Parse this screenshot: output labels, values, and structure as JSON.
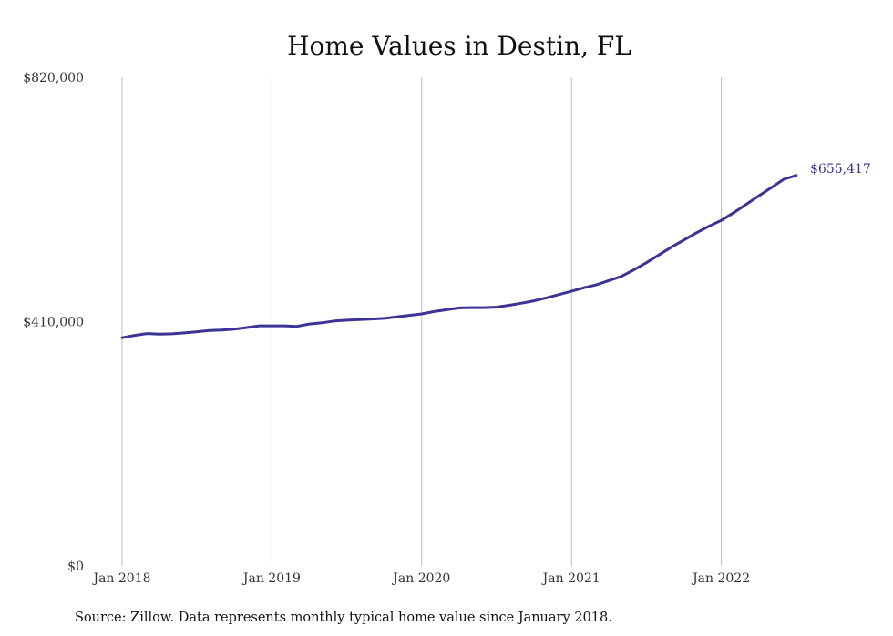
{
  "chart_data": {
    "type": "line",
    "title": "Home Values in Destin, FL",
    "xlabel": "",
    "ylabel": "",
    "ylim": [
      0,
      820000
    ],
    "y_ticks": [
      {
        "value": 0,
        "label": "$0"
      },
      {
        "value": 410000,
        "label": "$410,000"
      },
      {
        "value": 820000,
        "label": "$820,000"
      }
    ],
    "x_ticks": [
      {
        "month_index": 0,
        "label": "Jan 2018"
      },
      {
        "month_index": 12,
        "label": "Jan 2019"
      },
      {
        "month_index": 24,
        "label": "Jan 2020"
      },
      {
        "month_index": 36,
        "label": "Jan 2021"
      },
      {
        "month_index": 48,
        "label": "Jan 2022"
      }
    ],
    "grid": "vertical",
    "x": [
      "2018-01",
      "2018-02",
      "2018-03",
      "2018-04",
      "2018-05",
      "2018-06",
      "2018-07",
      "2018-08",
      "2018-09",
      "2018-10",
      "2018-11",
      "2018-12",
      "2019-01",
      "2019-02",
      "2019-03",
      "2019-04",
      "2019-05",
      "2019-06",
      "2019-07",
      "2019-08",
      "2019-09",
      "2019-10",
      "2019-11",
      "2019-12",
      "2020-01",
      "2020-02",
      "2020-03",
      "2020-04",
      "2020-05",
      "2020-06",
      "2020-07",
      "2020-08",
      "2020-09",
      "2020-10",
      "2020-11",
      "2020-12",
      "2021-01",
      "2021-02",
      "2021-03",
      "2021-04",
      "2021-05",
      "2021-06",
      "2021-07",
      "2021-08",
      "2021-09",
      "2021-10",
      "2021-11",
      "2021-12",
      "2022-01",
      "2022-02",
      "2022-03",
      "2022-04",
      "2022-05",
      "2022-06",
      "2022-07"
    ],
    "series": [
      {
        "color": "#3b3494",
        "values": [
          383000,
          387000,
          390000,
          389000,
          389500,
          391000,
          393000,
          395000,
          396000,
          397500,
          400000,
          403000,
          403000,
          403000,
          402000,
          406000,
          408000,
          411000,
          412500,
          413500,
          414500,
          415500,
          418000,
          420500,
          423000,
          427000,
          430000,
          433000,
          433500,
          433500,
          434500,
          437500,
          441000,
          445000,
          450000,
          455500,
          461000,
          467000,
          472000,
          479000,
          486000,
          497000,
          509000,
          522000,
          535000,
          547000,
          559000,
          570000,
          580000,
          593000,
          607000,
          621000,
          635000,
          649000,
          655417
        ]
      }
    ],
    "end_label": "$655,417",
    "source": "Source: Zillow. Data represents monthly typical home value since January 2018."
  }
}
